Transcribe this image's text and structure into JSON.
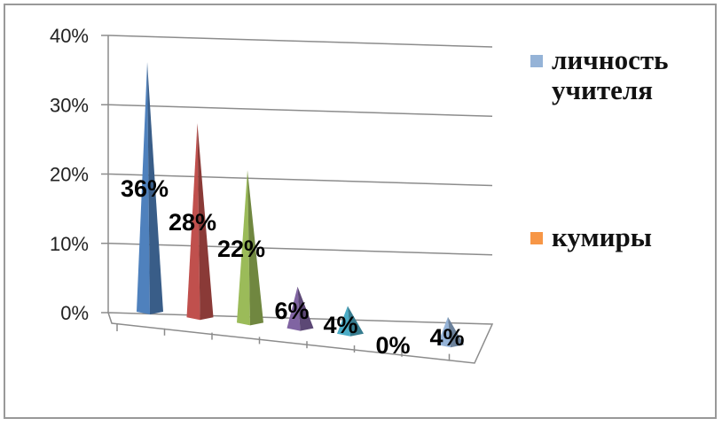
{
  "chart_data": {
    "type": "bar",
    "style": "3d-pyramid",
    "categories": [
      "",
      "",
      "",
      "",
      "",
      "",
      ""
    ],
    "values": [
      36,
      28,
      22,
      6,
      4,
      0,
      4
    ],
    "data_labels": [
      "36%",
      "28%",
      "22%",
      "6%",
      "4%",
      "0%",
      "4%"
    ],
    "colors": [
      "#4F81BD",
      "#C0504D",
      "#9BBB59",
      "#8064A2",
      "#4BACC6",
      "#F79646",
      "#95B3D7"
    ],
    "ylim": [
      0,
      40
    ],
    "yticks": [
      "0%",
      "10%",
      "20%",
      "30%",
      "40%"
    ],
    "grid": true,
    "legend": {
      "position": "right",
      "entries": [
        {
          "label": "личность учителя",
          "color": "#95B3D7"
        },
        {
          "label": "кумиры",
          "color": "#F79646"
        }
      ]
    }
  }
}
